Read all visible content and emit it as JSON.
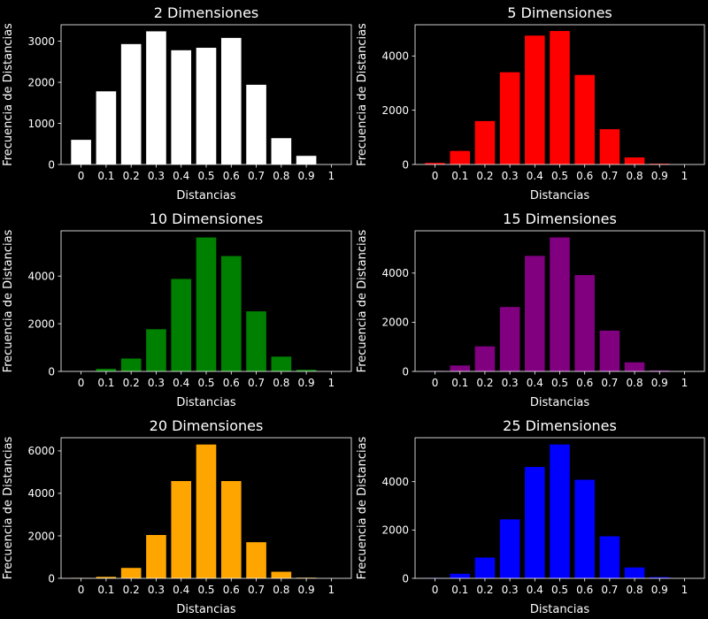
{
  "figure": {
    "background": "#000000",
    "foreground": "#ffffff"
  },
  "chart_data": [
    {
      "type": "bar",
      "title": "2 Dimensiones",
      "xlabel": "Distancias",
      "ylabel": "Frecuencia de Distancias",
      "color": "#ffffff",
      "categories": [
        "0",
        "0.1",
        "0.2",
        "0.3",
        "0.4",
        "0.5",
        "0.6",
        "0.7",
        "0.8",
        "0.9",
        "1"
      ],
      "values": [
        600,
        1780,
        2930,
        3240,
        2780,
        2840,
        3080,
        1940,
        640,
        210,
        0
      ],
      "ylim": [
        0,
        3400
      ],
      "yticks": [
        0,
        1000,
        2000,
        3000
      ],
      "grid": false
    },
    {
      "type": "bar",
      "title": "5 Dimensiones",
      "xlabel": "Distancias",
      "ylabel": "Frecuencia de Distancias",
      "color": "#ff0000",
      "categories": [
        "0",
        "0.1",
        "0.2",
        "0.3",
        "0.4",
        "0.5",
        "0.6",
        "0.7",
        "0.8",
        "0.9",
        "1"
      ],
      "values": [
        60,
        500,
        1600,
        3400,
        4750,
        4920,
        3300,
        1300,
        260,
        30,
        0
      ],
      "ylim": [
        0,
        5150
      ],
      "yticks": [
        0,
        2000,
        4000
      ],
      "grid": false
    },
    {
      "type": "bar",
      "title": "10 Dimensiones",
      "xlabel": "Distancias",
      "ylabel": "Frecuencia de Distancias",
      "color": "#008000",
      "categories": [
        "0",
        "0.1",
        "0.2",
        "0.3",
        "0.4",
        "0.5",
        "0.6",
        "0.7",
        "0.8",
        "0.9",
        "1"
      ],
      "values": [
        0,
        110,
        540,
        1770,
        3880,
        5620,
        4840,
        2520,
        620,
        70,
        0
      ],
      "ylim": [
        0,
        5900
      ],
      "yticks": [
        0,
        2000,
        4000
      ],
      "grid": false
    },
    {
      "type": "bar",
      "title": "15 Dimensiones",
      "xlabel": "Distancias",
      "ylabel": "Frecuencia de Distancias",
      "color": "#800080",
      "categories": [
        "0",
        "0.1",
        "0.2",
        "0.3",
        "0.4",
        "0.5",
        "0.6",
        "0.7",
        "0.8",
        "0.9",
        "1"
      ],
      "values": [
        20,
        240,
        1020,
        2620,
        4700,
        5450,
        3920,
        1660,
        370,
        40,
        0
      ],
      "ylim": [
        0,
        5720
      ],
      "yticks": [
        0,
        2000,
        4000
      ],
      "grid": false
    },
    {
      "type": "bar",
      "title": "20 Dimensiones",
      "xlabel": "Distancias",
      "ylabel": "Frecuencia de Distancias",
      "color": "#ffa500",
      "categories": [
        "0",
        "0.1",
        "0.2",
        "0.3",
        "0.4",
        "0.5",
        "0.6",
        "0.7",
        "0.8",
        "0.9",
        "1"
      ],
      "values": [
        20,
        70,
        490,
        2040,
        4580,
        6300,
        4580,
        1700,
        310,
        30,
        0
      ],
      "ylim": [
        0,
        6620
      ],
      "yticks": [
        0,
        2000,
        4000,
        6000
      ],
      "grid": false
    },
    {
      "type": "bar",
      "title": "25 Dimensiones",
      "xlabel": "Distancias",
      "ylabel": "Frecuencia de Distancias",
      "color": "#0000ff",
      "categories": [
        "0",
        "0.1",
        "0.2",
        "0.3",
        "0.4",
        "0.5",
        "0.6",
        "0.7",
        "0.8",
        "0.9",
        "1"
      ],
      "values": [
        20,
        190,
        860,
        2440,
        4610,
        5540,
        4080,
        1740,
        450,
        50,
        0
      ],
      "ylim": [
        0,
        5820
      ],
      "yticks": [
        0,
        2000,
        4000
      ],
      "grid": false
    }
  ]
}
